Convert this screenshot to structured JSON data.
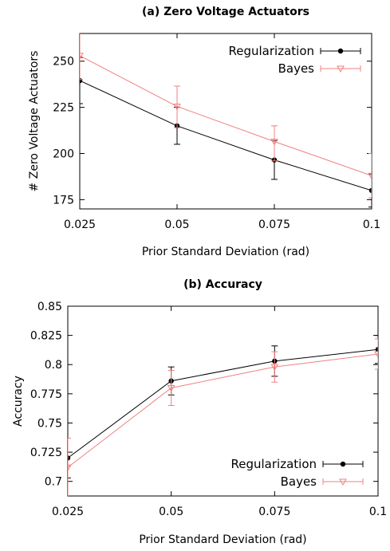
{
  "chart_data": [
    {
      "type": "line",
      "title": "(a) Zero Voltage Actuators",
      "xlabel": "Prior Standard Deviation (rad)",
      "ylabel": "# Zero Voltage Actuators",
      "x": [
        0.025,
        0.05,
        0.075,
        0.1
      ],
      "x_ticks": [
        "0.025",
        "0.05",
        "0.075",
        "0.1"
      ],
      "xlim": [
        0.025,
        0.1
      ],
      "ylim": [
        170,
        265
      ],
      "y_ticks": [
        "175",
        "200",
        "225",
        "250"
      ],
      "y_tick_values": [
        175,
        200,
        225,
        250
      ],
      "grid": false,
      "legend_position": "top-right",
      "series": [
        {
          "name": "Regularization",
          "color": "#000000",
          "marker": "circle",
          "values": [
            239.5,
            215,
            196.5,
            180
          ],
          "err_low": [
            227,
            205,
            186,
            171
          ],
          "err_high": [
            252,
            225,
            207,
            189
          ]
        },
        {
          "name": "Bayes",
          "color": "#f08080",
          "marker": "triangle-down",
          "values": [
            253,
            225.5,
            206.5,
            188
          ],
          "err_low": [
            240,
            214,
            196,
            176
          ],
          "err_high": [
            266,
            236.5,
            215,
            200
          ]
        }
      ]
    },
    {
      "type": "line",
      "title": "(b) Accuracy",
      "xlabel": "Prior Standard Deviation (rad)",
      "ylabel": "Accuracy",
      "x": [
        0.025,
        0.05,
        0.075,
        0.1
      ],
      "x_ticks": [
        "0.025",
        "0.05",
        "0.075",
        "0.1"
      ],
      "xlim": [
        0.025,
        0.1
      ],
      "ylim": [
        0.6875,
        0.85
      ],
      "y_ticks": [
        "0.7",
        "0.725",
        "0.75",
        "0.775",
        "0.8",
        "0.825",
        "0.85"
      ],
      "y_tick_values": [
        0.7,
        0.725,
        0.75,
        0.775,
        0.8,
        0.825,
        0.85
      ],
      "grid": false,
      "legend_position": "bottom-right",
      "series": [
        {
          "name": "Regularization",
          "color": "#000000",
          "marker": "circle",
          "values": [
            0.72,
            0.786,
            0.803,
            0.813
          ],
          "err_low": [
            0.703,
            0.774,
            0.79,
            0.801
          ],
          "err_high": [
            0.737,
            0.798,
            0.816,
            0.825
          ]
        },
        {
          "name": "Bayes",
          "color": "#f08080",
          "marker": "triangle-down",
          "values": [
            0.712,
            0.78,
            0.798,
            0.809
          ],
          "err_low": [
            0.687,
            0.765,
            0.785,
            0.796
          ],
          "err_high": [
            0.737,
            0.795,
            0.811,
            0.822
          ]
        }
      ]
    }
  ]
}
